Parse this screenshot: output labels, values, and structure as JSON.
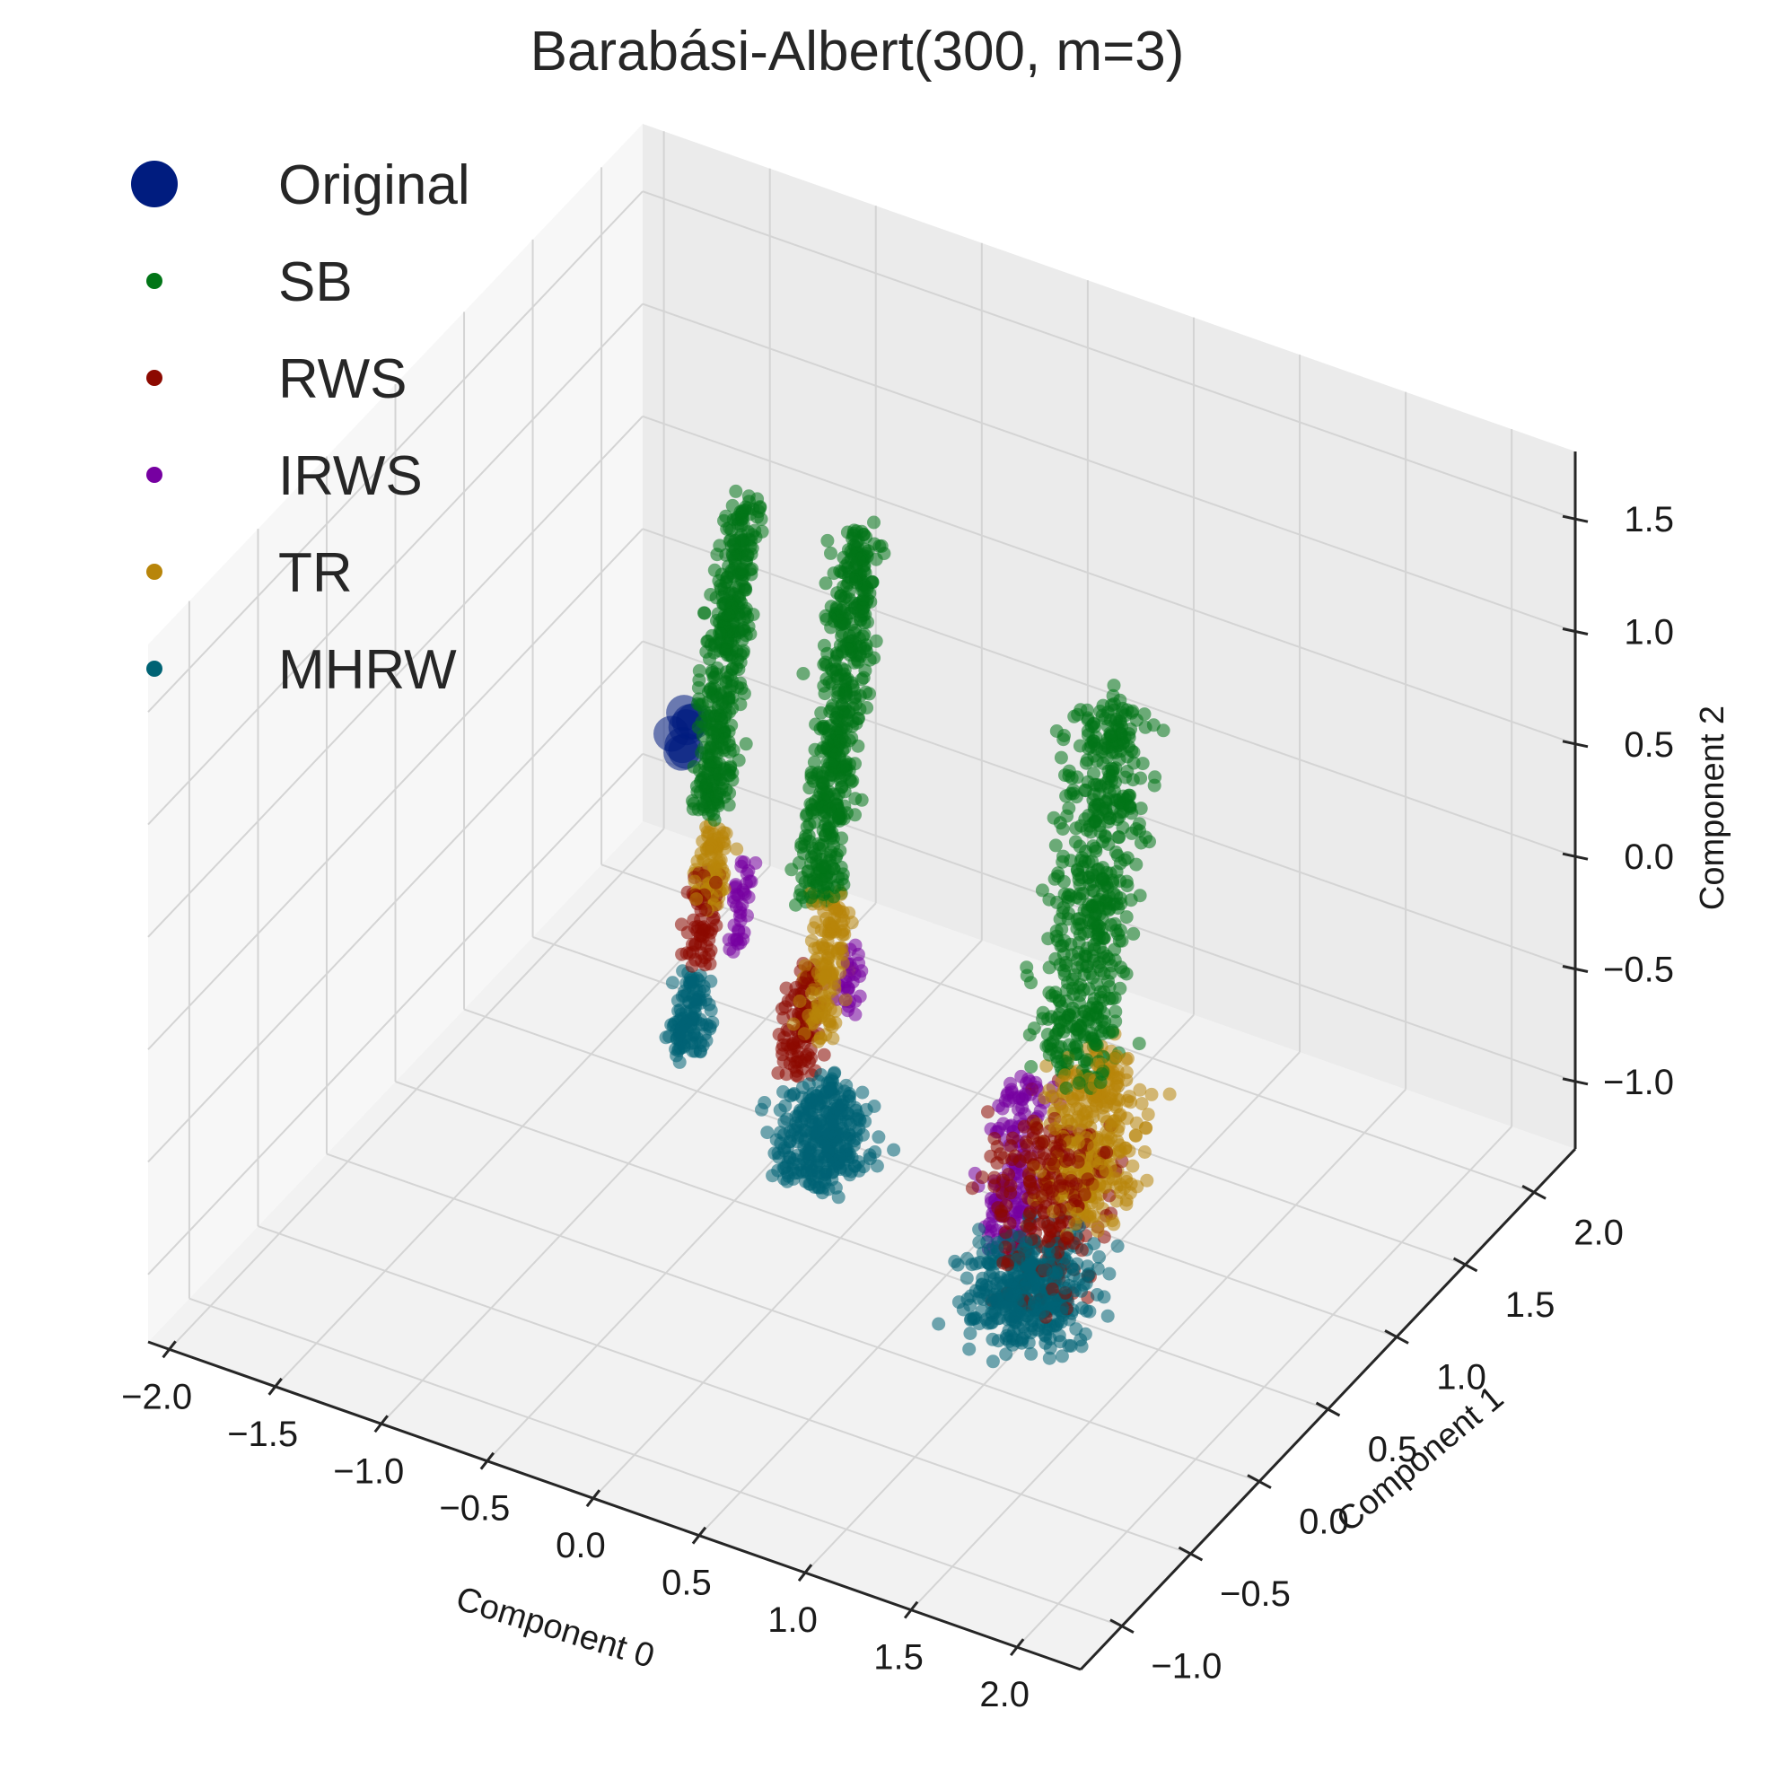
{
  "chart_data": {
    "type": "scatter",
    "projection": "3d",
    "title": "Barabási-Albert(300, m=3)",
    "xlabel": "Component 0",
    "ylabel": "Component 1",
    "zlabel": "Component 2",
    "xlim": [
      -2.1,
      2.3
    ],
    "ylim": [
      -1.3,
      2.3
    ],
    "zlim": [
      -1.3,
      1.8
    ],
    "x_ticks": [
      -2.0,
      -1.5,
      -1.0,
      -0.5,
      0.0,
      0.5,
      1.0,
      1.5,
      2.0
    ],
    "y_ticks": [
      -1.0,
      -0.5,
      0.0,
      0.5,
      1.0,
      1.5,
      2.0
    ],
    "z_ticks": [
      -1.0,
      -0.5,
      0.0,
      0.5,
      1.0,
      1.5
    ],
    "x_tick_labels": [
      "−2.0",
      "−1.5",
      "−1.0",
      "−0.5",
      "0.0",
      "0.5",
      "1.0",
      "1.5",
      "2.0"
    ],
    "y_tick_labels": [
      "−1.0",
      "−0.5",
      "0.0",
      "0.5",
      "1.0",
      "1.5",
      "2.0"
    ],
    "z_tick_labels": [
      "−1.0",
      "−0.5",
      "0.0",
      "0.5",
      "1.0",
      "1.5"
    ],
    "grid": true,
    "legend_position": "top-left",
    "series": [
      {
        "name": "Original",
        "color": "#001c7f",
        "marker_size": "large",
        "clusters": [
          {
            "x": -1.25,
            "y": 1.25,
            "z": 0.05,
            "spread": 0.05,
            "zmin": -0.05,
            "zmax": 0.15,
            "count": 8
          }
        ]
      },
      {
        "name": "SB",
        "color": "#017517",
        "marker_size": "small",
        "clusters": [
          {
            "x": -0.95,
            "y": 1.0,
            "z": 0.5,
            "spread": 0.06,
            "zmin": -0.05,
            "zmax": 1.4,
            "count": 420
          },
          {
            "x": -0.3,
            "y": 0.8,
            "z": 0.6,
            "spread": 0.07,
            "zmin": -0.1,
            "zmax": 1.6,
            "count": 520
          },
          {
            "x": 1.1,
            "y": 0.5,
            "z": 0.4,
            "spread": 0.12,
            "zmin": -0.2,
            "zmax": 1.5,
            "count": 560
          }
        ]
      },
      {
        "name": "RWS",
        "color": "#8c0900",
        "marker_size": "small",
        "clusters": [
          {
            "x": -1.0,
            "y": 1.0,
            "z": -0.55,
            "spread": 0.05,
            "zmin": -0.75,
            "zmax": -0.3,
            "count": 70
          },
          {
            "x": -0.4,
            "y": 0.8,
            "z": -0.65,
            "spread": 0.06,
            "zmin": -0.9,
            "zmax": -0.4,
            "count": 110
          },
          {
            "x": 1.0,
            "y": 0.4,
            "z": -0.75,
            "spread": 0.16,
            "zmin": -1.15,
            "zmax": -0.35,
            "count": 260
          }
        ]
      },
      {
        "name": "IRWS",
        "color": "#7600a1",
        "marker_size": "small",
        "clusters": [
          {
            "x": -0.85,
            "y": 1.05,
            "z": -0.45,
            "spread": 0.03,
            "zmin": -0.65,
            "zmax": -0.25,
            "count": 40
          },
          {
            "x": -0.2,
            "y": 0.85,
            "z": -0.45,
            "spread": 0.03,
            "zmin": -0.6,
            "zmax": -0.3,
            "count": 30
          },
          {
            "x": 0.75,
            "y": 0.55,
            "z": -0.75,
            "spread": 0.08,
            "zmin": -1.15,
            "zmax": -0.35,
            "count": 160
          }
        ]
      },
      {
        "name": "TR",
        "color": "#b8850a",
        "marker_size": "small",
        "clusters": [
          {
            "x": -0.95,
            "y": 1.0,
            "z": -0.28,
            "spread": 0.05,
            "zmin": -0.45,
            "zmax": -0.1,
            "count": 90
          },
          {
            "x": -0.3,
            "y": 0.8,
            "z": -0.35,
            "spread": 0.06,
            "zmin": -0.7,
            "zmax": -0.05,
            "count": 150
          },
          {
            "x": 1.15,
            "y": 0.5,
            "z": -0.45,
            "spread": 0.14,
            "zmin": -0.8,
            "zmax": -0.1,
            "count": 330
          }
        ]
      },
      {
        "name": "MHRW",
        "color": "#006374",
        "marker_size": "small",
        "clusters": [
          {
            "x": -1.05,
            "y": 1.0,
            "z": -0.95,
            "spread": 0.06,
            "zmin": -1.15,
            "zmax": -0.8,
            "count": 110
          },
          {
            "x": -0.2,
            "y": 0.65,
            "z": -1.0,
            "spread": 0.14,
            "zmin": -1.2,
            "zmax": -0.8,
            "count": 320
          },
          {
            "x": 1.0,
            "y": 0.3,
            "z": -1.05,
            "spread": 0.18,
            "zmin": -1.25,
            "zmax": -0.85,
            "count": 420
          }
        ]
      }
    ]
  }
}
